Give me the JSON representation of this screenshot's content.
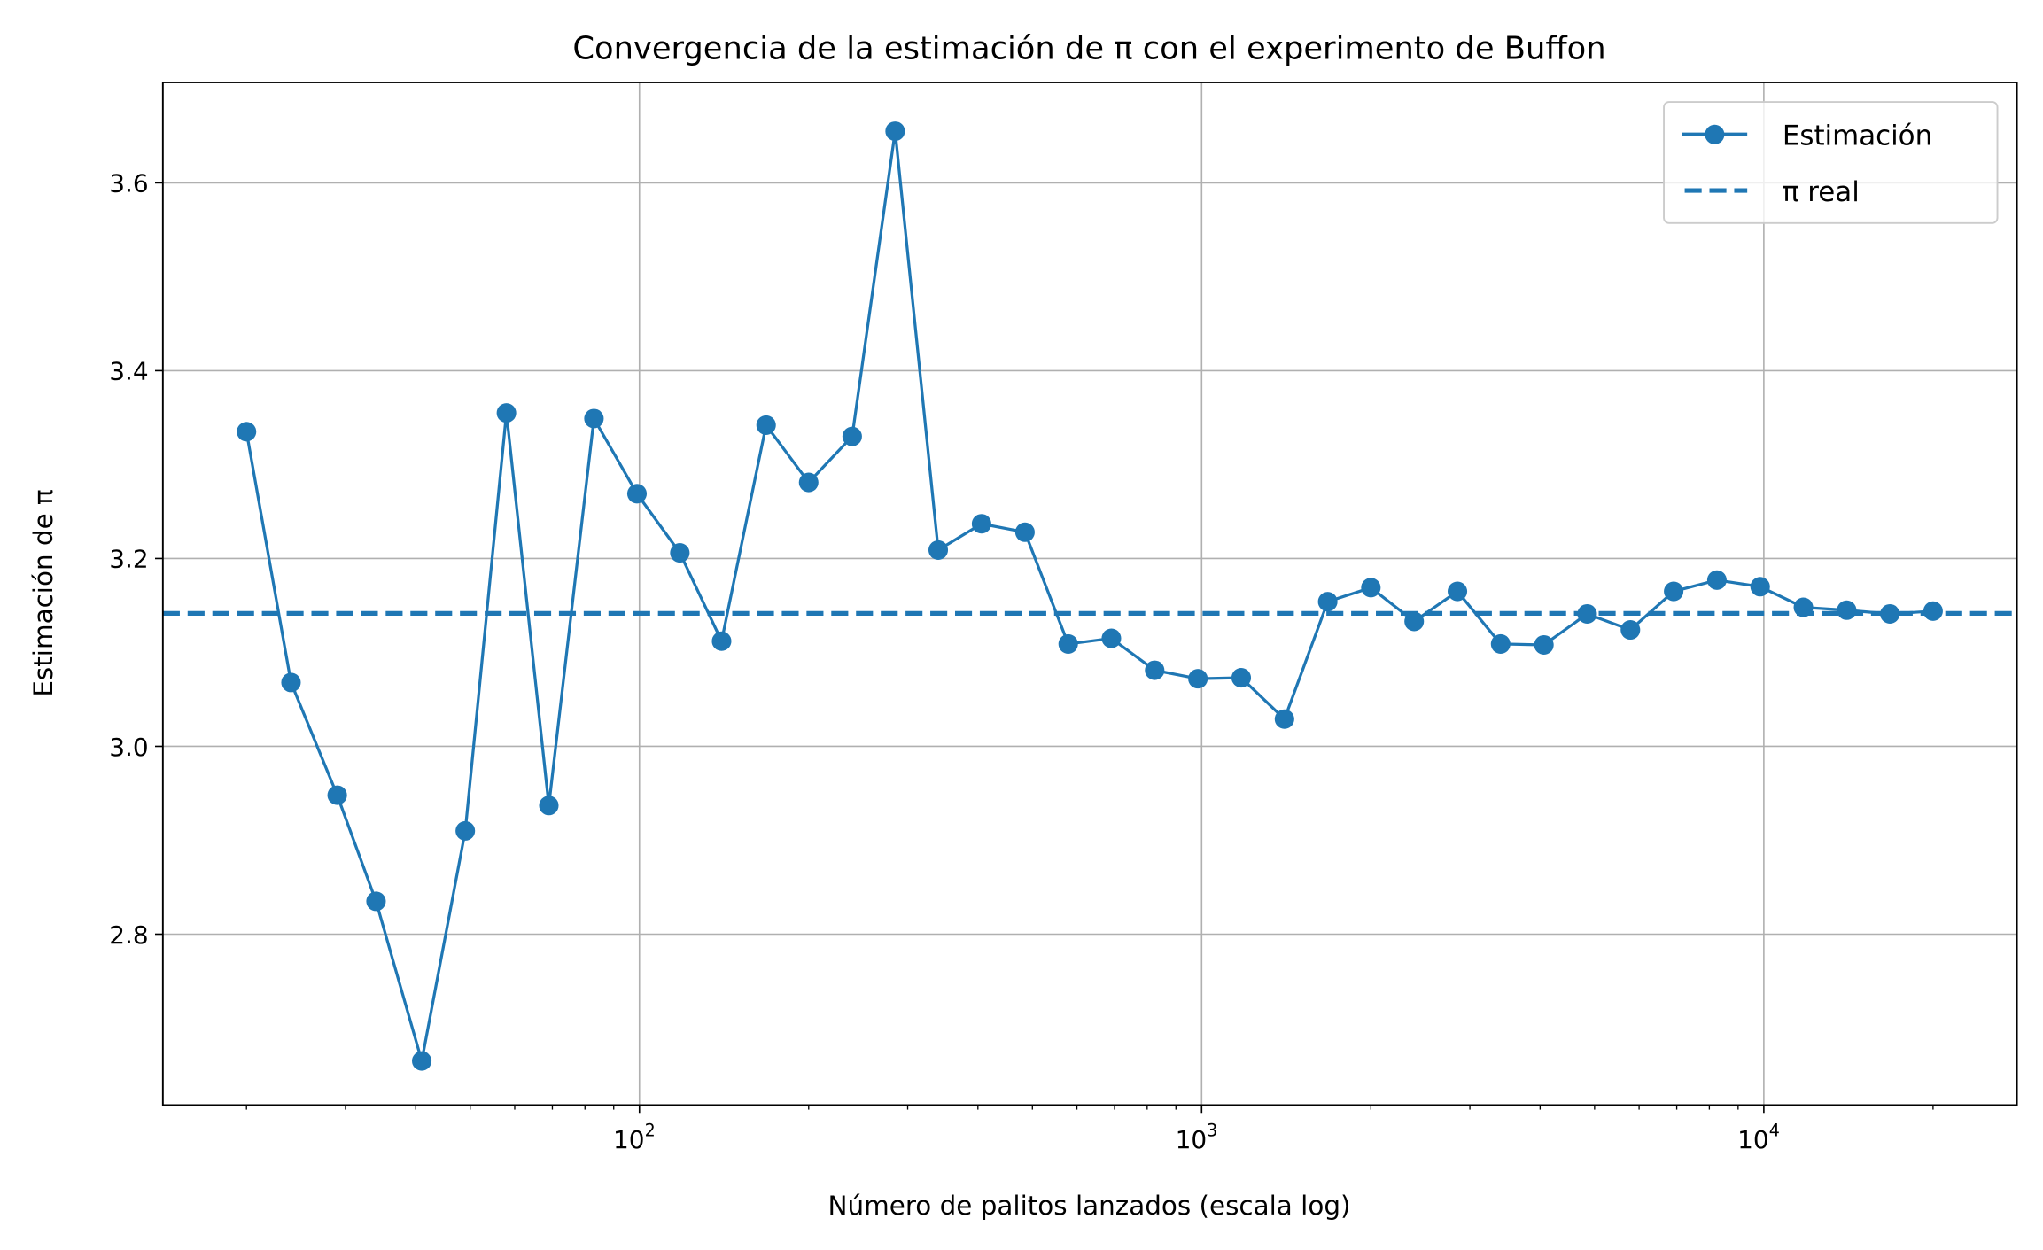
{
  "chart_data": {
    "type": "line",
    "title": "Convergencia de la estimación de π con el experimento de Buffon",
    "xlabel": "Número de palitos lanzados (escala log)",
    "ylabel": "Estimación de π",
    "xscale": "log",
    "xlim": [
      14.2,
      28200
    ],
    "ylim": [
      2.618,
      3.707
    ],
    "grid": true,
    "legend_placement": "top-right",
    "x_ticks": [
      {
        "value": 100,
        "base": "10",
        "exp": "2"
      },
      {
        "value": 1000,
        "base": "10",
        "exp": "3"
      },
      {
        "value": 10000,
        "base": "10",
        "exp": "4"
      }
    ],
    "y_ticks": [
      {
        "value": 2.8,
        "label": "2.8"
      },
      {
        "value": 3.0,
        "label": "3.0"
      },
      {
        "value": 3.2,
        "label": "3.2"
      },
      {
        "value": 3.4,
        "label": "3.4"
      },
      {
        "value": 3.6,
        "label": "3.6"
      }
    ],
    "series": [
      {
        "name": "Estimación",
        "style": "line-marker",
        "color": "#1f77b4",
        "x": [
          20,
          24,
          29,
          34,
          41,
          49,
          58,
          69,
          83,
          99,
          118,
          140,
          168,
          200,
          239,
          285,
          340,
          406,
          485,
          579,
          691,
          825,
          985,
          1176,
          1404,
          1676,
          2000,
          2388,
          2851,
          3403,
          4063,
          4850,
          5790,
          6912,
          8252,
          9851,
          11760,
          14040,
          16760,
          20000
        ],
        "y": [
          3.335,
          3.068,
          2.948,
          2.835,
          2.665,
          2.91,
          3.355,
          2.937,
          3.349,
          3.269,
          3.206,
          3.112,
          3.342,
          3.281,
          3.33,
          3.655,
          3.209,
          3.237,
          3.228,
          3.109,
          3.115,
          3.081,
          3.072,
          3.073,
          3.029,
          3.154,
          3.169,
          3.133,
          3.165,
          3.109,
          3.108,
          3.141,
          3.124,
          3.165,
          3.177,
          3.17,
          3.148,
          3.145,
          3.141,
          3.144
        ]
      },
      {
        "name": "π real",
        "style": "dashed-hline",
        "color": "#1f77b4",
        "y": 3.14159
      }
    ]
  }
}
